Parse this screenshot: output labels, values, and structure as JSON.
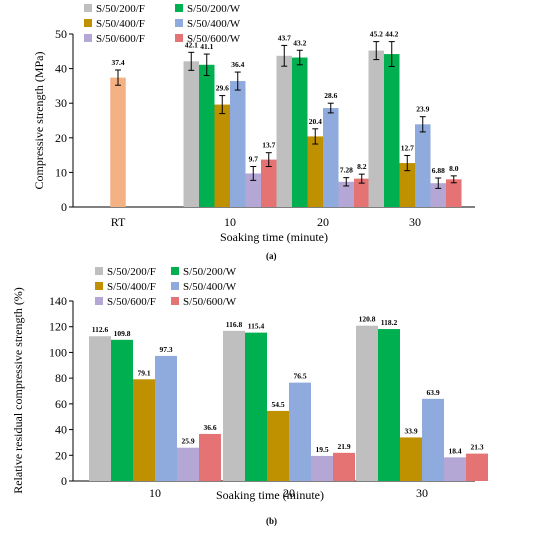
{
  "panel_a_label": "(a)",
  "panel_b_label": "(b)",
  "chart_data": [
    {
      "type": "bar",
      "ylabel": "Compressive strength (MPa)",
      "xlabel": "Soaking time (minute)",
      "ylim": [
        0,
        50
      ],
      "yticks": [
        0,
        10,
        20,
        30,
        40,
        50
      ],
      "grid": false,
      "legend_position": "top",
      "groups": [
        {
          "label": "RT",
          "bars": [
            {
              "series": "RT",
              "value": 37.4,
              "error": 2.2,
              "label": "37.4"
            }
          ]
        },
        {
          "label": "10",
          "bars": [
            {
              "series": "S/50/200/F",
              "value": 42.1,
              "error": 2.6,
              "label": "42.1"
            },
            {
              "series": "S/50/200/W",
              "value": 41.1,
              "error": 3.1,
              "label": "41.1"
            },
            {
              "series": "S/50/400/F",
              "value": 29.6,
              "error": 2.6,
              "label": "29.6"
            },
            {
              "series": "S/50/400/W",
              "value": 36.4,
              "error": 2.6,
              "label": "36.4"
            },
            {
              "series": "S/50/600/F",
              "value": 9.7,
              "error": 2.0,
              "label": "9.7"
            },
            {
              "series": "S/50/600/W",
              "value": 13.7,
              "error": 2.0,
              "label": "13.7"
            }
          ]
        },
        {
          "label": "20",
          "bars": [
            {
              "series": "S/50/200/F",
              "value": 43.7,
              "error": 3.0,
              "label": "43.7"
            },
            {
              "series": "S/50/200/W",
              "value": 43.2,
              "error": 2.1,
              "label": "43.2"
            },
            {
              "series": "S/50/400/F",
              "value": 20.4,
              "error": 2.2,
              "label": "20.4"
            },
            {
              "series": "S/50/400/W",
              "value": 28.6,
              "error": 1.4,
              "label": "28.6"
            },
            {
              "series": "S/50/600/F",
              "value": 7.28,
              "error": 1.2,
              "label": "7.28"
            },
            {
              "series": "S/50/600/W",
              "value": 8.2,
              "error": 1.3,
              "label": "8.2"
            }
          ]
        },
        {
          "label": "30",
          "bars": [
            {
              "series": "S/50/200/F",
              "value": 45.2,
              "error": 2.6,
              "label": "45.2"
            },
            {
              "series": "S/50/200/W",
              "value": 44.2,
              "error": 3.6,
              "label": "44.2"
            },
            {
              "series": "S/50/400/F",
              "value": 12.7,
              "error": 2.2,
              "label": "12.7"
            },
            {
              "series": "S/50/400/W",
              "value": 23.9,
              "error": 2.2,
              "label": "23.9"
            },
            {
              "series": "S/50/600/F",
              "value": 6.88,
              "error": 1.5,
              "label": "6.88"
            },
            {
              "series": "S/50/600/W",
              "value": 8.0,
              "error": 1.0,
              "label": "8.0"
            }
          ]
        }
      ]
    },
    {
      "type": "bar",
      "ylabel": "Relative residual compressive strength (%)",
      "xlabel": "Soaking time (minute)",
      "ylim": [
        0,
        140
      ],
      "yticks": [
        0,
        20,
        40,
        60,
        80,
        100,
        120,
        140
      ],
      "grid": false,
      "legend_position": "top-left",
      "categories": [
        "10",
        "20",
        "30"
      ],
      "series": [
        {
          "name": "S/50/200/F",
          "values": [
            112.6,
            116.8,
            120.8
          ],
          "labels": [
            "112.6",
            "116.8",
            "120.8"
          ]
        },
        {
          "name": "S/50/200/W",
          "values": [
            109.8,
            115.4,
            118.2
          ],
          "labels": [
            "109.8",
            "115.4",
            "118.2"
          ]
        },
        {
          "name": "S/50/400/F",
          "values": [
            79.1,
            54.5,
            33.9
          ],
          "labels": [
            "79.1",
            "54.5",
            "33.9"
          ]
        },
        {
          "name": "S/50/400/W",
          "values": [
            97.3,
            76.5,
            63.9
          ],
          "labels": [
            "97.3",
            "76.5",
            "63.9"
          ]
        },
        {
          "name": "S/50/600/F",
          "values": [
            25.9,
            19.5,
            18.4
          ],
          "labels": [
            "25.9",
            "19.5",
            "18.4"
          ]
        },
        {
          "name": "S/50/600/W",
          "values": [
            36.6,
            21.9,
            21.3
          ],
          "labels": [
            "36.6",
            "21.9",
            "21.3"
          ]
        }
      ]
    }
  ],
  "colors": {
    "RT": "#f4b183",
    "S/50/200/F": "#bfbfbf",
    "S/50/200/W": "#00b050",
    "S/50/400/F": "#bf9000",
    "S/50/400/W": "#8faadc",
    "S/50/600/F": "#b4a7d6",
    "S/50/600/W": "#e57373"
  }
}
